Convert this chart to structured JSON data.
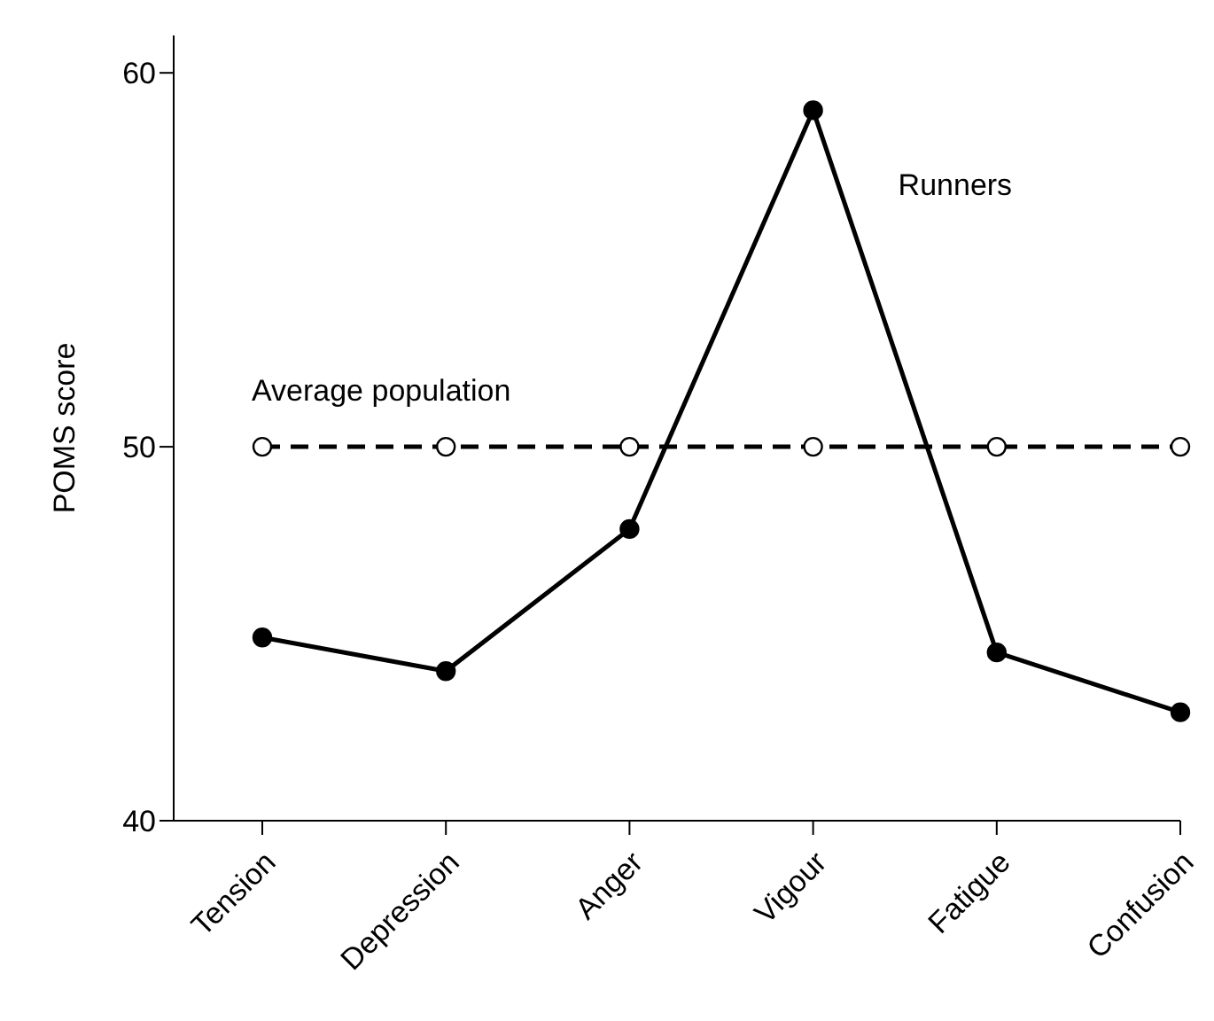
{
  "chart_data": {
    "type": "line",
    "ylabel": "POMS score",
    "categories": [
      "Tension",
      "Depression",
      "Anger",
      "Vigour",
      "Fatigue",
      "Confusion"
    ],
    "series": [
      {
        "name": "Runners",
        "color": "#000000",
        "values": [
          44.9,
          44,
          47.8,
          59,
          44.5,
          42.9
        ],
        "line_style": "solid"
      },
      {
        "name": "Average population",
        "color": "#000000",
        "values": [
          50,
          50,
          50,
          50,
          50,
          50
        ],
        "line_style": "dashed"
      }
    ],
    "ylim": [
      40,
      61
    ],
    "yticks": [
      40,
      50,
      60
    ],
    "grid": false,
    "legend": false,
    "marker": "circle"
  }
}
